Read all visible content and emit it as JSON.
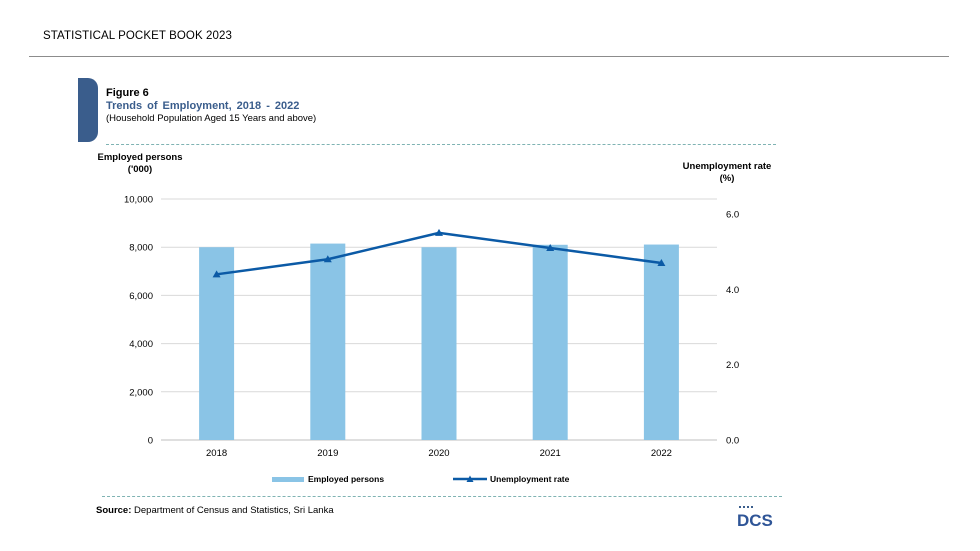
{
  "header": {
    "title": "STATISTICAL POCKET BOOK 2023"
  },
  "figure": {
    "label": "Figure 6",
    "title": "Trends of Employment, 2018 - 2022",
    "subtitle": "(Household Population Aged 15 Years and above)"
  },
  "axes": {
    "left_title_line1": "Employed persons",
    "left_title_line2": "('000)",
    "right_title_line1": "Unemployment rate",
    "right_title_line2": "(%)"
  },
  "legend": {
    "bar_label": "Employed persons",
    "line_label": "Unemployment rate"
  },
  "source": {
    "label": "Source:",
    "text": "Department of Census and Statistics, Sri Lanka"
  },
  "logo": {
    "text": "DCS"
  },
  "colors": {
    "bar": "#8ac4e6",
    "line": "#0b5aa6",
    "accent": "#3a5d8c",
    "grid": "#d9d9d9"
  },
  "chart_data": {
    "type": "bar",
    "categories": [
      "2018",
      "2019",
      "2020",
      "2021",
      "2022"
    ],
    "series": [
      {
        "name": "Employed persons",
        "type": "bar",
        "axis": "left",
        "values": [
          8000,
          8150,
          8000,
          8100,
          8110
        ]
      },
      {
        "name": "Unemployment rate",
        "type": "line",
        "axis": "right",
        "values": [
          4.4,
          4.8,
          5.5,
          5.1,
          4.7
        ]
      }
    ],
    "y_left": {
      "label": "Employed persons ('000)",
      "ylim": [
        0,
        10000
      ],
      "ticks": [
        "0",
        "2,000",
        "4,000",
        "6,000",
        "8,000",
        "10,000"
      ],
      "tick_values": [
        0,
        2000,
        4000,
        6000,
        8000,
        10000
      ]
    },
    "y_right": {
      "label": "Unemployment rate (%)",
      "ylim": [
        0,
        6.4
      ],
      "ticks": [
        "0.0",
        "2.0",
        "4.0",
        "6.0"
      ],
      "tick_values": [
        0,
        2,
        4,
        6
      ]
    },
    "grid": true,
    "legend_position": "bottom"
  }
}
